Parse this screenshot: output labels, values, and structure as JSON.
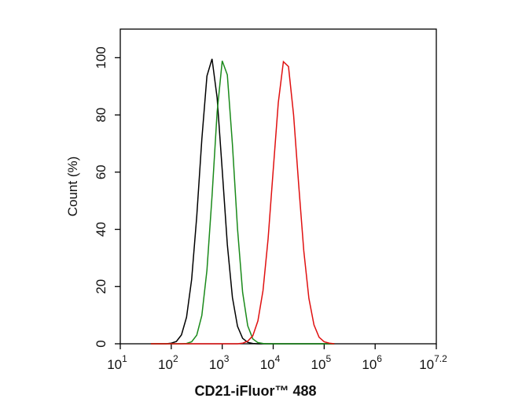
{
  "chart_data": {
    "type": "line",
    "x_label": "CD21-iFluor™ 488",
    "y_label": "Count  (%)",
    "x_scale": "log",
    "xlim": [
      10,
      15848932
    ],
    "xticks": [
      {
        "value": 10,
        "label": "10",
        "power": "1"
      },
      {
        "value": 100,
        "label": "10",
        "power": "2"
      },
      {
        "value": 1000,
        "label": "10",
        "power": "3"
      },
      {
        "value": 10000,
        "label": "10",
        "power": "4"
      },
      {
        "value": 100000,
        "label": "10",
        "power": "5"
      },
      {
        "value": 1000000,
        "label": "10",
        "power": "6"
      },
      {
        "value": 15848932,
        "label": "10",
        "power": "7.2"
      }
    ],
    "ylim": [
      0,
      110
    ],
    "yticks": [
      0,
      20,
      40,
      60,
      80,
      100
    ],
    "x": [
      39.8,
      50.1,
      63.1,
      79.4,
      100,
      125.9,
      158.5,
      199.5,
      251.2,
      316.2,
      398.1,
      501.2,
      631,
      794.3,
      1000,
      1258.9,
      1584.9,
      1995.3,
      2511.9,
      3162.3,
      3981.1,
      5011.9,
      6309.6,
      7943.3,
      10000,
      12589,
      15849,
      19953,
      25119,
      31623,
      39811,
      50119,
      63096,
      79433,
      100000,
      125893,
      158489
    ],
    "series": [
      {
        "color": "#000000",
        "values": [
          0,
          0,
          0,
          0,
          0.2,
          0.8,
          3.1,
          9.3,
          22.5,
          44.5,
          71.5,
          93.6,
          99.6,
          86,
          60.7,
          34.7,
          16.2,
          6.1,
          1.9,
          0.5,
          0.1,
          0,
          0,
          0,
          0,
          0,
          0,
          0,
          0,
          0,
          0,
          0,
          0,
          0,
          0,
          0,
          0
        ]
      },
      {
        "color": "#1a8a1a",
        "values": [
          0,
          0,
          0,
          0,
          0,
          0,
          0,
          0.1,
          0.7,
          3,
          9.9,
          25.7,
          51.6,
          81,
          98.9,
          94,
          69.7,
          40.2,
          18,
          6.3,
          1.7,
          0.4,
          0.1,
          0,
          0,
          0,
          0,
          0,
          0,
          0,
          0,
          0,
          0,
          0,
          0,
          0,
          0
        ]
      },
      {
        "color": "#e01010",
        "values": [
          0,
          0,
          0,
          0,
          0,
          0,
          0,
          0,
          0,
          0,
          0,
          0,
          0,
          0,
          0,
          0,
          0,
          0,
          0.2,
          0.9,
          2.8,
          8,
          18.6,
          36.7,
          60.7,
          84.3,
          98.6,
          96.9,
          80,
          55.6,
          32.5,
          15.9,
          6.6,
          2.3,
          0.7,
          0.2,
          0
        ]
      }
    ]
  }
}
